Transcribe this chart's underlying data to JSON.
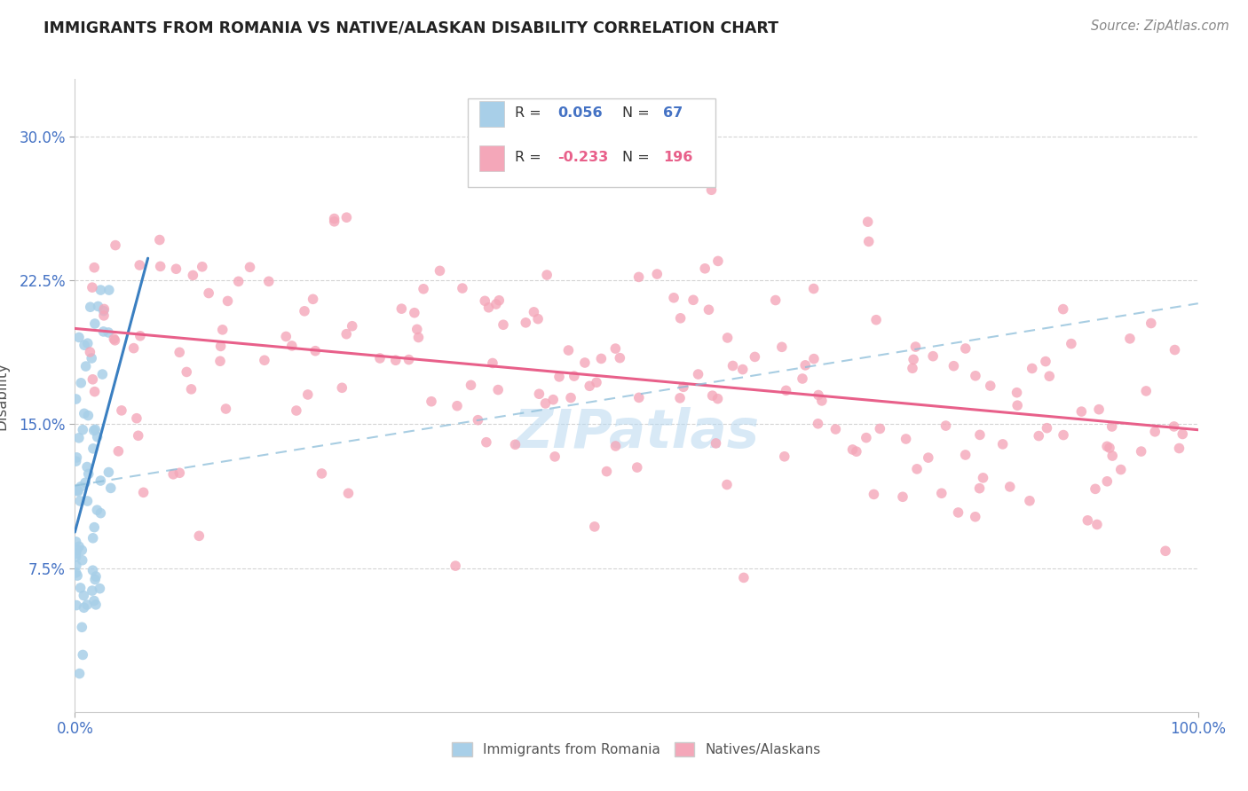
{
  "title": "IMMIGRANTS FROM ROMANIA VS NATIVE/ALASKAN DISABILITY CORRELATION CHART",
  "source": "Source: ZipAtlas.com",
  "ylabel": "Disability",
  "xlim": [
    0,
    1
  ],
  "ylim": [
    0,
    0.33
  ],
  "yticks": [
    0.075,
    0.15,
    0.225,
    0.3
  ],
  "ytick_labels": [
    "7.5%",
    "15.0%",
    "22.5%",
    "30.0%"
  ],
  "xticks": [
    0,
    1
  ],
  "xtick_labels": [
    "0.0%",
    "100.0%"
  ],
  "blue_color": "#a8cfe8",
  "pink_color": "#f4a7b9",
  "blue_line_color": "#3a7fc1",
  "pink_line_color": "#e8608a",
  "dashed_line_color": "#aacfe0",
  "watermark": "ZIPatlas",
  "background_color": "#ffffff",
  "grid_color": "#d0d0d0",
  "tick_color": "#4472c4",
  "title_color": "#222222",
  "source_color": "#888888",
  "ylabel_color": "#555555"
}
